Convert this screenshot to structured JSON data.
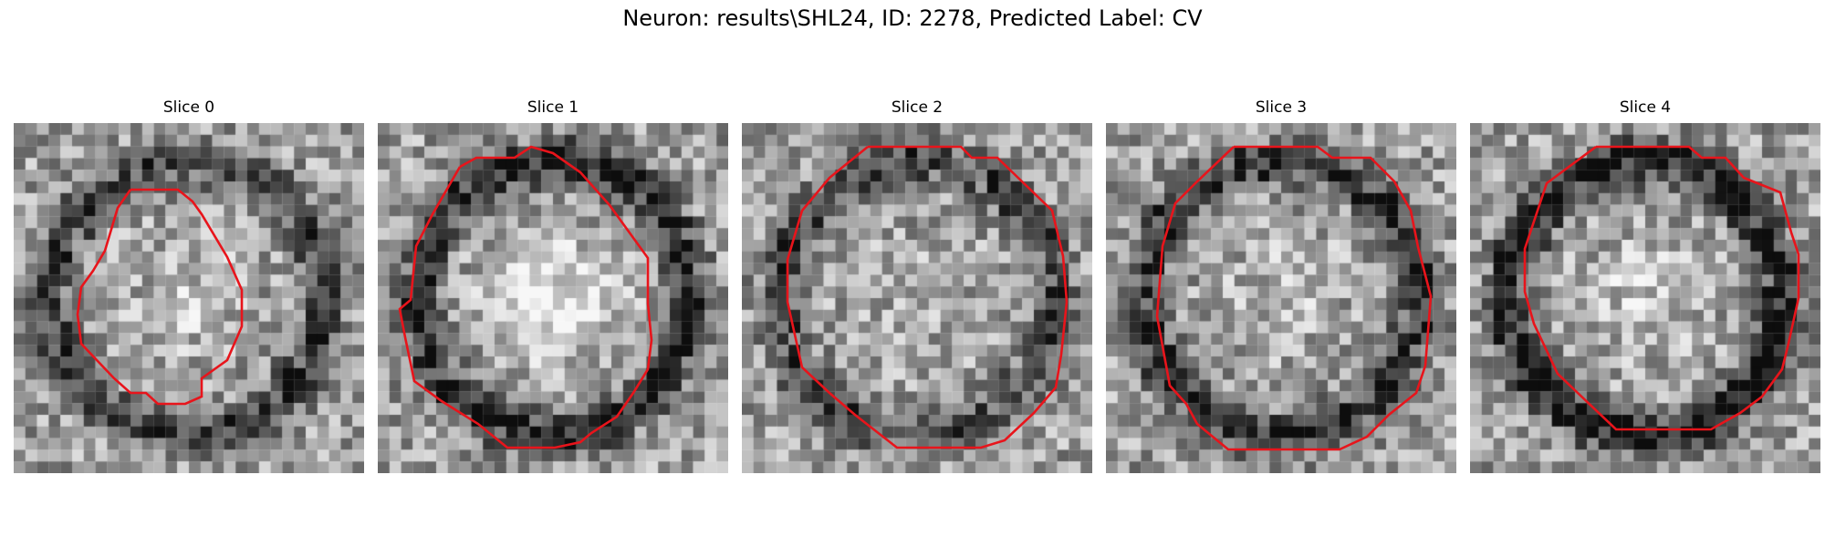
{
  "figure": {
    "title": "Neuron: results\\SHL24, ID: 2278, Predicted Label: CV",
    "outline_color": "#e8141b"
  },
  "slices": [
    {
      "title": "Slice 0",
      "seed": 11,
      "dark_ring": 0.45,
      "center_bright": 0.12
    },
    {
      "title": "Slice 1",
      "seed": 23,
      "dark_ring": 0.55,
      "center_bright": 0.3
    },
    {
      "title": "Slice 2",
      "seed": 37,
      "dark_ring": 0.4,
      "center_bright": 0.05
    },
    {
      "title": "Slice 3",
      "seed": 51,
      "dark_ring": 0.5,
      "center_bright": 0.1
    },
    {
      "title": "Slice 4",
      "seed": 67,
      "dark_ring": 0.65,
      "center_bright": 0.15
    }
  ]
}
